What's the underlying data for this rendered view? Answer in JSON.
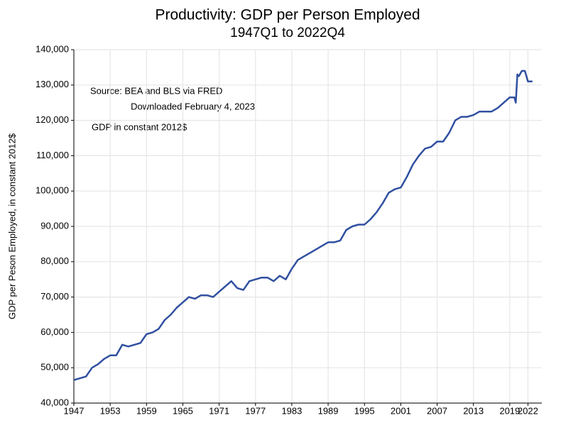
{
  "chart_data": {
    "type": "line",
    "title": "Productivity:  GDP per Person Employed",
    "subtitle": "1947Q1 to 2022Q4",
    "y_label": "GDP per Peson Employed, in constant 2012$",
    "annotations": [
      "Source:  BEA and BLS via FRED",
      "Downloaded February 4, 2023",
      "GDP in constant 2012$"
    ],
    "x": [
      1947,
      1948,
      1949,
      1950,
      1951,
      1952,
      1953,
      1954,
      1955,
      1956,
      1957,
      1958,
      1959,
      1960,
      1961,
      1962,
      1963,
      1964,
      1965,
      1966,
      1967,
      1968,
      1969,
      1970,
      1971,
      1972,
      1973,
      1974,
      1975,
      1976,
      1977,
      1978,
      1979,
      1980,
      1981,
      1982,
      1983,
      1984,
      1985,
      1986,
      1987,
      1988,
      1989,
      1990,
      1991,
      1992,
      1993,
      1994,
      1995,
      1996,
      1997,
      1998,
      1999,
      2000,
      2001,
      2002,
      2003,
      2004,
      2005,
      2006,
      2007,
      2008,
      2009,
      2010,
      2011,
      2012,
      2013,
      2014,
      2015,
      2016,
      2017,
      2018,
      2019,
      2019.75,
      2020,
      2020.25,
      2020.5,
      2021,
      2021.5,
      2022,
      2022.75
    ],
    "series": [
      {
        "name": "GDP per Person Employed",
        "color": "#3050a0",
        "values": [
          46500,
          47000,
          47500,
          50000,
          51000,
          52500,
          53500,
          53500,
          56500,
          56000,
          56500,
          57000,
          59500,
          60000,
          61000,
          63500,
          65000,
          67000,
          68500,
          70000,
          69500,
          70500,
          70500,
          70000,
          71500,
          73000,
          74500,
          72500,
          72000,
          74500,
          75000,
          75500,
          75500,
          74500,
          76000,
          75000,
          78000,
          80500,
          81500,
          82500,
          83500,
          84500,
          85500,
          85500,
          86000,
          89000,
          90000,
          90500,
          90500,
          92000,
          94000,
          96500,
          99500,
          100500,
          101000,
          104000,
          107500,
          110000,
          112000,
          112500,
          114000,
          114000,
          116500,
          120000,
          121000,
          121000,
          121500,
          122500,
          122500,
          122500,
          123500,
          125000,
          126500,
          126500,
          125000,
          133000,
          132500,
          134000,
          134000,
          131000,
          131000
        ]
      }
    ],
    "xlim": [
      1947,
      2024.3
    ],
    "xticks": [
      1947,
      1953,
      1959,
      1965,
      1971,
      1977,
      1983,
      1989,
      1995,
      2001,
      2007,
      2013,
      2019,
      2022
    ],
    "ylim": [
      40000,
      140000
    ],
    "yticks": [
      {
        "value": 40000,
        "label": "40,000"
      },
      {
        "value": 50000,
        "label": "50,000"
      },
      {
        "value": 60000,
        "label": "60,000"
      },
      {
        "value": 70000,
        "label": "70,000"
      },
      {
        "value": 80000,
        "label": "80,000"
      },
      {
        "value": 90000,
        "label": "90,000"
      },
      {
        "value": 100000,
        "label": "100,000"
      },
      {
        "value": 110000,
        "label": "110,000"
      },
      {
        "value": 120000,
        "label": "120,000"
      },
      {
        "value": 130000,
        "label": "130,000"
      },
      {
        "value": 140000,
        "label": "140,000"
      }
    ],
    "grid": true
  }
}
